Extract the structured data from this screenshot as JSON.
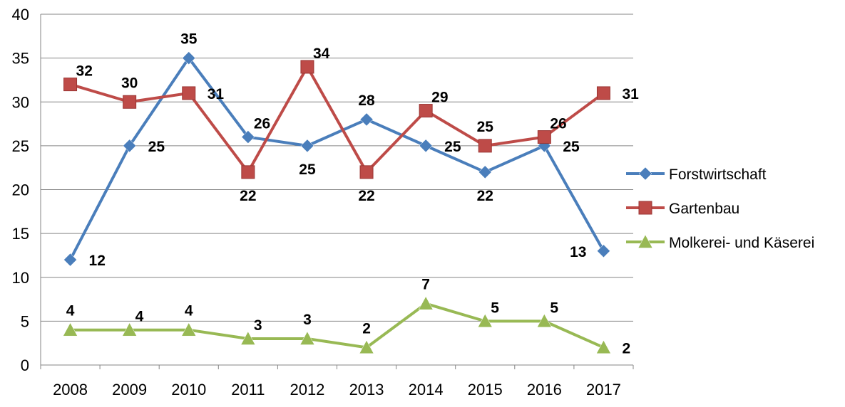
{
  "chart_data": {
    "type": "line",
    "title": "",
    "xlabel": "",
    "ylabel": "",
    "ylim": [
      0,
      40
    ],
    "ytick_step": 5,
    "grid": true,
    "legend_position": "right",
    "categories": [
      "2008",
      "2009",
      "2010",
      "2011",
      "2012",
      "2013",
      "2014",
      "2015",
      "2016",
      "2017"
    ],
    "series": [
      {
        "name": "Forstwirtschaft",
        "color": "#4a7ebb",
        "marker": "diamond",
        "values": [
          12,
          25,
          35,
          26,
          25,
          28,
          25,
          22,
          25,
          13
        ],
        "label_positions": [
          "right",
          "right",
          "above",
          "above-right",
          "below",
          "above",
          "right",
          "below",
          "right",
          "left"
        ]
      },
      {
        "name": "Gartenbau",
        "color": "#be4b48",
        "marker": "square",
        "values": [
          32,
          30,
          31,
          22,
          34,
          22,
          29,
          25,
          26,
          31
        ],
        "label_positions": [
          "above-right",
          "above",
          "right",
          "below",
          "above-right",
          "below",
          "above-right",
          "above",
          "above-right",
          "right"
        ]
      },
      {
        "name": "Molkerei- und Käserei",
        "color": "#98b954",
        "marker": "triangle",
        "values": [
          4,
          4,
          4,
          3,
          3,
          2,
          7,
          5,
          5,
          2
        ],
        "label_positions": [
          "above",
          "above-right",
          "above",
          "above-right",
          "above",
          "above",
          "above",
          "above-right",
          "above-right",
          "right"
        ]
      }
    ]
  }
}
